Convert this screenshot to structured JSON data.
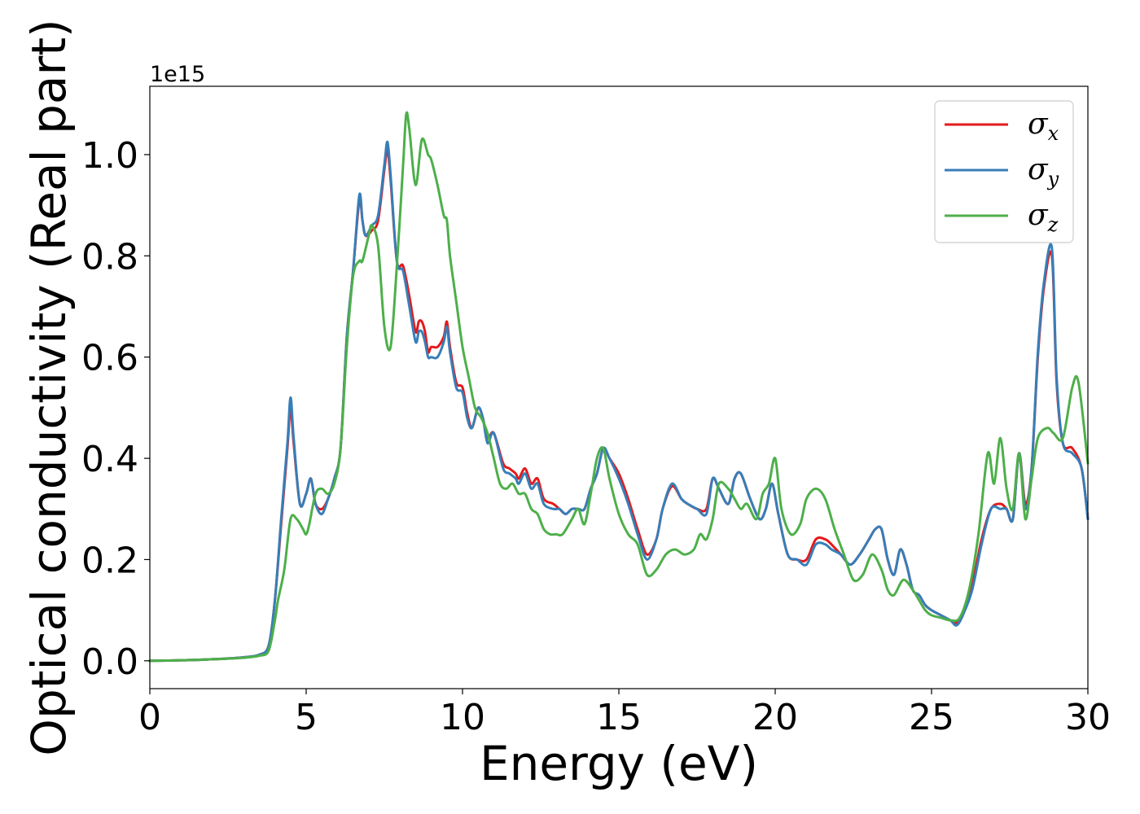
{
  "chart_data": {
    "type": "line",
    "xlabel": "Energy (eV)",
    "ylabel": "Optical conductivity (Real part)",
    "y_offset_label": "1e15",
    "xlim": [
      0,
      30
    ],
    "ylim": [
      -0.055,
      1.135
    ],
    "xticks": [
      0,
      5,
      10,
      15,
      20,
      25,
      30
    ],
    "xtick_labels": [
      "0",
      "5",
      "10",
      "15",
      "20",
      "25",
      "30"
    ],
    "yticks": [
      0.0,
      0.2,
      0.4,
      0.6,
      0.8,
      1.0
    ],
    "ytick_labels": [
      "0.0",
      "0.2",
      "0.4",
      "0.6",
      "0.8",
      "1.0"
    ],
    "grid": false,
    "legend_position": "top-right",
    "series": [
      {
        "name": "σx",
        "symbol": "σ",
        "subscript": "x",
        "color": "#e41a1c",
        "x": [
          0,
          1,
          2,
          3,
          3.5,
          3.8,
          4.0,
          4.2,
          4.4,
          4.5,
          4.6,
          4.8,
          5.0,
          5.15,
          5.3,
          5.5,
          5.7,
          5.9,
          6.1,
          6.3,
          6.5,
          6.7,
          6.8,
          6.9,
          7.1,
          7.3,
          7.5,
          7.6,
          7.7,
          7.9,
          8.1,
          8.3,
          8.5,
          8.6,
          8.7,
          8.8,
          8.9,
          9.0,
          9.2,
          9.4,
          9.5,
          9.6,
          9.8,
          10.0,
          10.15,
          10.3,
          10.5,
          10.65,
          10.8,
          11.0,
          11.3,
          11.5,
          11.7,
          11.8,
          12.0,
          12.2,
          12.4,
          12.6,
          12.9,
          13.1,
          13.3,
          13.5,
          13.7,
          13.9,
          14.1,
          14.3,
          14.5,
          14.7,
          15.0,
          15.3,
          15.6,
          15.9,
          16.2,
          16.4,
          16.7,
          17.0,
          17.2,
          17.5,
          17.8,
          18.0,
          18.2,
          18.5,
          18.7,
          18.9,
          19.2,
          19.5,
          19.7,
          19.9,
          20.1,
          20.4,
          20.7,
          21.0,
          21.3,
          21.6,
          21.8,
          22.1,
          22.4,
          22.7,
          23.0,
          23.2,
          23.4,
          23.6,
          23.8,
          24.0,
          24.2,
          24.4,
          24.6,
          24.8,
          25.0,
          25.3,
          25.6,
          25.8,
          26.0,
          26.3,
          26.6,
          26.9,
          27.2,
          27.4,
          27.6,
          27.8,
          28.0,
          28.2,
          28.4,
          28.6,
          28.85,
          29.0,
          29.2,
          29.5,
          29.8,
          30.0
        ],
        "y": [
          0.0,
          0.001,
          0.003,
          0.007,
          0.012,
          0.03,
          0.12,
          0.27,
          0.42,
          0.5,
          0.43,
          0.31,
          0.33,
          0.36,
          0.31,
          0.3,
          0.32,
          0.36,
          0.42,
          0.64,
          0.77,
          0.91,
          0.87,
          0.84,
          0.85,
          0.87,
          0.97,
          1.01,
          0.95,
          0.79,
          0.78,
          0.72,
          0.65,
          0.67,
          0.67,
          0.65,
          0.61,
          0.62,
          0.62,
          0.64,
          0.67,
          0.62,
          0.55,
          0.54,
          0.49,
          0.46,
          0.5,
          0.48,
          0.44,
          0.45,
          0.39,
          0.38,
          0.37,
          0.36,
          0.38,
          0.35,
          0.36,
          0.32,
          0.31,
          0.3,
          0.29,
          0.3,
          0.3,
          0.3,
          0.34,
          0.37,
          0.42,
          0.4,
          0.37,
          0.32,
          0.26,
          0.21,
          0.24,
          0.3,
          0.345,
          0.32,
          0.31,
          0.3,
          0.3,
          0.36,
          0.34,
          0.31,
          0.36,
          0.37,
          0.32,
          0.28,
          0.3,
          0.35,
          0.29,
          0.21,
          0.2,
          0.2,
          0.24,
          0.24,
          0.23,
          0.21,
          0.19,
          0.21,
          0.24,
          0.26,
          0.26,
          0.2,
          0.17,
          0.22,
          0.19,
          0.14,
          0.13,
          0.11,
          0.1,
          0.09,
          0.08,
          0.075,
          0.09,
          0.15,
          0.24,
          0.3,
          0.31,
          0.3,
          0.28,
          0.41,
          0.31,
          0.38,
          0.6,
          0.74,
          0.8,
          0.55,
          0.43,
          0.42,
          0.38,
          0.28
        ]
      },
      {
        "name": "σy",
        "symbol": "σ",
        "subscript": "y",
        "color": "#377eb8",
        "x": [
          0,
          1,
          2,
          3,
          3.5,
          3.8,
          4.0,
          4.2,
          4.4,
          4.5,
          4.6,
          4.8,
          5.0,
          5.15,
          5.3,
          5.5,
          5.7,
          5.9,
          6.1,
          6.3,
          6.5,
          6.7,
          6.8,
          6.9,
          7.1,
          7.3,
          7.5,
          7.6,
          7.7,
          7.9,
          8.1,
          8.3,
          8.5,
          8.6,
          8.7,
          8.8,
          8.9,
          9.0,
          9.2,
          9.4,
          9.5,
          9.6,
          9.8,
          10.0,
          10.15,
          10.3,
          10.5,
          10.65,
          10.8,
          11.0,
          11.3,
          11.5,
          11.7,
          11.8,
          12.0,
          12.2,
          12.4,
          12.6,
          12.9,
          13.1,
          13.3,
          13.5,
          13.7,
          13.9,
          14.1,
          14.3,
          14.5,
          14.7,
          15.0,
          15.3,
          15.6,
          15.9,
          16.2,
          16.4,
          16.7,
          17.0,
          17.2,
          17.5,
          17.8,
          18.0,
          18.2,
          18.5,
          18.7,
          18.9,
          19.2,
          19.5,
          19.7,
          19.9,
          20.1,
          20.4,
          20.7,
          21.0,
          21.3,
          21.6,
          21.8,
          22.1,
          22.4,
          22.7,
          23.0,
          23.2,
          23.4,
          23.6,
          23.8,
          24.0,
          24.2,
          24.4,
          24.6,
          24.8,
          25.0,
          25.3,
          25.6,
          25.8,
          26.0,
          26.3,
          26.6,
          26.9,
          27.2,
          27.4,
          27.6,
          27.8,
          28.0,
          28.2,
          28.4,
          28.6,
          28.85,
          29.0,
          29.2,
          29.5,
          29.8,
          30.0
        ],
        "y": [
          0.0,
          0.001,
          0.003,
          0.007,
          0.012,
          0.03,
          0.12,
          0.28,
          0.43,
          0.52,
          0.44,
          0.31,
          0.33,
          0.36,
          0.31,
          0.29,
          0.32,
          0.36,
          0.42,
          0.64,
          0.77,
          0.92,
          0.87,
          0.84,
          0.86,
          0.88,
          0.98,
          1.025,
          0.96,
          0.79,
          0.77,
          0.7,
          0.63,
          0.65,
          0.65,
          0.63,
          0.6,
          0.6,
          0.6,
          0.63,
          0.66,
          0.61,
          0.54,
          0.53,
          0.48,
          0.46,
          0.5,
          0.48,
          0.43,
          0.45,
          0.38,
          0.37,
          0.36,
          0.35,
          0.37,
          0.34,
          0.35,
          0.31,
          0.3,
          0.3,
          0.29,
          0.3,
          0.3,
          0.3,
          0.34,
          0.37,
          0.42,
          0.4,
          0.36,
          0.31,
          0.25,
          0.2,
          0.24,
          0.3,
          0.35,
          0.32,
          0.31,
          0.3,
          0.29,
          0.36,
          0.34,
          0.31,
          0.36,
          0.37,
          0.32,
          0.28,
          0.3,
          0.35,
          0.29,
          0.21,
          0.2,
          0.19,
          0.23,
          0.23,
          0.22,
          0.21,
          0.19,
          0.21,
          0.24,
          0.26,
          0.26,
          0.2,
          0.17,
          0.22,
          0.19,
          0.14,
          0.13,
          0.11,
          0.1,
          0.09,
          0.08,
          0.07,
          0.09,
          0.14,
          0.23,
          0.3,
          0.3,
          0.3,
          0.28,
          0.41,
          0.3,
          0.38,
          0.61,
          0.75,
          0.815,
          0.56,
          0.43,
          0.41,
          0.38,
          0.28
        ]
      },
      {
        "name": "σz",
        "symbol": "σ",
        "subscript": "z",
        "color": "#4daf4a",
        "x": [
          0,
          1,
          2,
          3,
          3.5,
          3.8,
          4.0,
          4.1,
          4.3,
          4.5,
          4.7,
          4.9,
          5.0,
          5.1,
          5.3,
          5.5,
          5.7,
          5.9,
          6.1,
          6.3,
          6.5,
          6.7,
          6.8,
          7.0,
          7.1,
          7.3,
          7.5,
          7.7,
          7.9,
          8.1,
          8.2,
          8.3,
          8.5,
          8.7,
          8.9,
          9.0,
          9.2,
          9.4,
          9.5,
          9.6,
          9.8,
          10.0,
          10.2,
          10.4,
          10.6,
          10.8,
          11.0,
          11.2,
          11.4,
          11.6,
          11.8,
          12.0,
          12.2,
          12.4,
          12.6,
          12.8,
          13.0,
          13.2,
          13.5,
          13.7,
          13.9,
          14.1,
          14.3,
          14.5,
          14.7,
          15.0,
          15.3,
          15.6,
          15.9,
          16.2,
          16.5,
          16.8,
          17.1,
          17.4,
          17.6,
          17.8,
          18.0,
          18.2,
          18.5,
          18.7,
          18.9,
          19.1,
          19.4,
          19.6,
          19.8,
          20.0,
          20.2,
          20.5,
          20.8,
          21.0,
          21.3,
          21.6,
          21.9,
          22.2,
          22.5,
          22.8,
          23.1,
          23.4,
          23.6,
          23.8,
          24.1,
          24.4,
          24.6,
          24.8,
          25.0,
          25.3,
          25.6,
          25.9,
          26.2,
          26.5,
          26.8,
          27.0,
          27.2,
          27.4,
          27.6,
          27.8,
          28.0,
          28.2,
          28.4,
          28.7,
          28.9,
          29.2,
          29.5,
          29.7,
          30.0
        ],
        "y": [
          0.0,
          0.001,
          0.003,
          0.006,
          0.01,
          0.02,
          0.08,
          0.12,
          0.18,
          0.28,
          0.28,
          0.26,
          0.25,
          0.27,
          0.33,
          0.34,
          0.33,
          0.35,
          0.42,
          0.62,
          0.76,
          0.79,
          0.79,
          0.84,
          0.86,
          0.82,
          0.66,
          0.62,
          0.78,
          0.98,
          1.08,
          1.05,
          0.94,
          1.03,
          1.0,
          0.99,
          0.94,
          0.88,
          0.87,
          0.8,
          0.71,
          0.62,
          0.56,
          0.5,
          0.48,
          0.45,
          0.4,
          0.35,
          0.34,
          0.35,
          0.33,
          0.33,
          0.3,
          0.29,
          0.26,
          0.25,
          0.25,
          0.25,
          0.28,
          0.3,
          0.27,
          0.33,
          0.4,
          0.42,
          0.36,
          0.29,
          0.25,
          0.23,
          0.17,
          0.18,
          0.21,
          0.22,
          0.21,
          0.22,
          0.25,
          0.24,
          0.28,
          0.35,
          0.34,
          0.32,
          0.3,
          0.31,
          0.28,
          0.33,
          0.35,
          0.4,
          0.3,
          0.25,
          0.27,
          0.32,
          0.34,
          0.32,
          0.26,
          0.21,
          0.16,
          0.17,
          0.21,
          0.18,
          0.14,
          0.13,
          0.16,
          0.14,
          0.12,
          0.1,
          0.09,
          0.085,
          0.08,
          0.085,
          0.14,
          0.25,
          0.41,
          0.35,
          0.44,
          0.34,
          0.3,
          0.41,
          0.28,
          0.36,
          0.44,
          0.46,
          0.45,
          0.44,
          0.54,
          0.55,
          0.39
        ]
      }
    ]
  }
}
